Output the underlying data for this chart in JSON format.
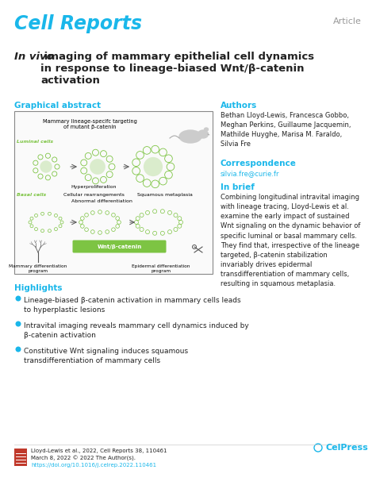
{
  "background_color": "#ffffff",
  "article_label": "Article",
  "article_label_color": "#999999",
  "journal_name": "Cell Reports",
  "journal_color": "#1ab7ea",
  "title_italic": "In vivo",
  "title_bold": " imaging of mammary epithelial cell dynamics\nin response to lineage-biased Wnt/β-catenin\nactivation",
  "graphical_abstract_label": "Graphical abstract",
  "section_color": "#1ab7ea",
  "authors_label": "Authors",
  "authors_text": "Bethan Lloyd-Lewis, Francesca Gobbo,\nMeghan Perkins, Guillaume Jacquemin,\nMathilde Huyghe, Marisa M. Faraldo,\nSilvia Fre",
  "correspondence_label": "Correspondence",
  "correspondence_text": "silvia.fre@curie.fr",
  "in_brief_label": "In brief",
  "in_brief_text": "Combining longitudinal intravital imaging\nwith lineage tracing, Lloyd-Lewis et al.\nexamine the early impact of sustained\nWnt signaling on the dynamic behavior of\nspecific luminal or basal mammary cells.\nThey find that, irrespective of the lineage\ntargeted, β-catenin stabilization\ninvariably drives epidermal\ntransdifferentiation of mammary cells,\nresulting in squamous metaplasia.",
  "highlights_label": "Highlights",
  "highlight1": "Lineage-biased β-catenin activation in mammary cells leads\nto hyperplastic lesions",
  "highlight2": "Intravital imaging reveals mammary cell dynamics induced by\nβ-catenin activation",
  "highlight3": "Constitutive Wnt signaling induces squamous\ntransdifferentiation of mammary cells",
  "bullet_color": "#1ab7ea",
  "footer_text1": "Lloyd-Lewis et al., 2022, Cell Reports 38, 110461",
  "footer_text2": "March 8, 2022 © 2022 The Author(s).",
  "footer_link": "https://doi.org/10.1016/j.celrep.2022.110461",
  "footer_link_color": "#1ab7ea",
  "celpress_color": "#1ab7ea",
  "luminal_color": "#7dc443",
  "basal_color": "#7dc443",
  "wnt_bar_color": "#7dc443",
  "text_color": "#222222"
}
